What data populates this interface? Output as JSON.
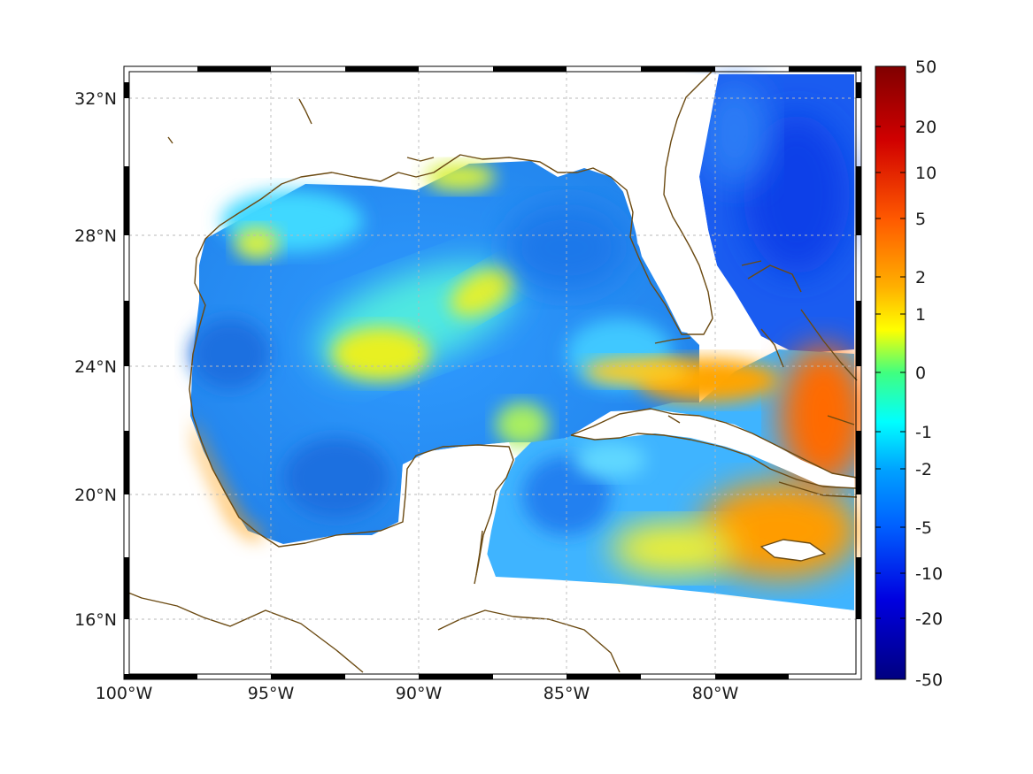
{
  "map": {
    "lon_ticks": [
      "100°W",
      "95°W",
      "90°W",
      "85°W",
      "80°W"
    ],
    "lat_ticks": [
      "32°N",
      "28°N",
      "24°N",
      "20°N",
      "16°N"
    ],
    "colors": {
      "coastline": "#6b4a12",
      "land": "#ffffff",
      "gridline": "#b9b9b9"
    }
  },
  "colorbar": {
    "labels": [
      "50",
      "20",
      "10",
      "5",
      "2",
      "1",
      "0",
      "-1",
      "-2",
      "-5",
      "-10",
      "-20",
      "-50"
    ],
    "stops": [
      "#800000",
      "#ff0000",
      "#ff8000",
      "#ffff00",
      "#00ffff",
      "#0080ff",
      "#0000ff",
      "#000080"
    ]
  }
}
